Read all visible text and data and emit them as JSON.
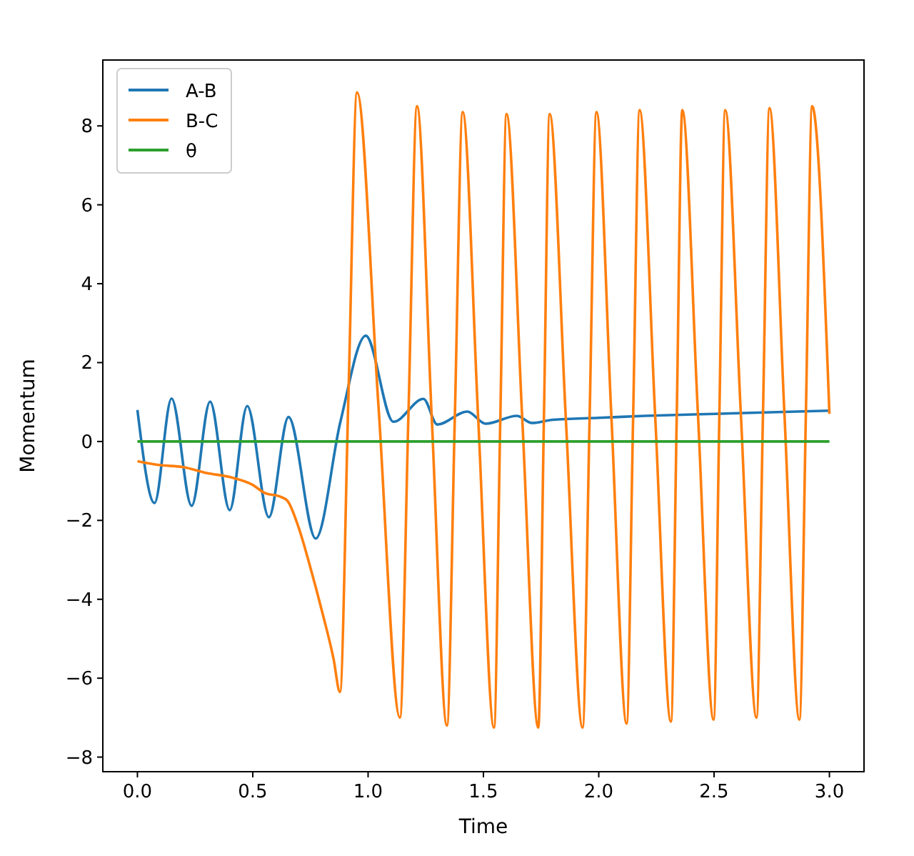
{
  "chart_data": {
    "type": "line",
    "xlabel": "Time",
    "ylabel": "Momentum",
    "xlim": [
      -0.15,
      3.15
    ],
    "ylim": [
      -8.37,
      9.67
    ],
    "xticks": [
      {
        "value": 0,
        "label": "0.0"
      },
      {
        "value": 0.5,
        "label": "0.5"
      },
      {
        "value": 1,
        "label": "1.0"
      },
      {
        "value": 1.5,
        "label": "1.5"
      },
      {
        "value": 2,
        "label": "2.0"
      },
      {
        "value": 2.5,
        "label": "2.5"
      },
      {
        "value": 3,
        "label": "3.0"
      }
    ],
    "yticks": [
      {
        "value": -8,
        "label": "−8"
      },
      {
        "value": -6,
        "label": "−6"
      },
      {
        "value": -4,
        "label": "−4"
      },
      {
        "value": -2,
        "label": "−2"
      },
      0,
      2,
      4,
      6,
      8
    ],
    "legend": "top left",
    "grid": false,
    "marker": "none",
    "line_style": "solid",
    "series": [
      {
        "name": "A-B",
        "color": "#1f77b4",
        "x": [
          0,
          0.074,
          0.148,
          0.235,
          0.315,
          0.4,
          0.476,
          0.57,
          0.655,
          0.773,
          0.88,
          0.99,
          1.11,
          1.24,
          1.3,
          1.43,
          1.51,
          1.645,
          1.71,
          1.8,
          2.0,
          2.2,
          2.5,
          2.8,
          3.0
        ],
        "values": [
          0.8,
          -1.56,
          1.09,
          -1.63,
          1.01,
          -1.74,
          0.9,
          -1.92,
          0.62,
          -2.46,
          0.5,
          2.68,
          0.5,
          1.08,
          0.43,
          0.76,
          0.45,
          0.65,
          0.47,
          0.55,
          0.6,
          0.65,
          0.7,
          0.75,
          0.78
        ]
      },
      {
        "name": "B-C",
        "color": "#ff7f0e",
        "x": [
          0,
          0.1,
          0.2,
          0.3,
          0.4,
          0.5,
          0.55,
          0.62,
          0.65,
          0.7,
          0.75,
          0.8,
          0.85,
          0.878,
          0.915,
          0.952,
          1.045,
          1.138,
          1.175,
          1.212,
          1.276,
          1.342,
          1.376,
          1.41,
          1.478,
          1.546,
          1.573,
          1.6,
          1.669,
          1.738,
          1.762,
          1.787,
          1.858,
          1.93,
          1.96,
          1.99,
          2.055,
          2.121,
          2.149,
          2.177,
          2.245,
          2.313,
          2.338,
          2.362,
          2.43,
          2.498,
          2.523,
          2.548,
          2.616,
          2.684,
          2.712,
          2.74,
          2.805,
          2.87,
          2.898,
          2.925,
          3.0
        ],
        "values": [
          -0.5,
          -0.6,
          -0.65,
          -0.8,
          -0.9,
          -1.1,
          -1.3,
          -1.4,
          -1.5,
          -2.2,
          -3.2,
          -4.3,
          -5.5,
          -6.35,
          1.2,
          8.85,
          0.9,
          -7.0,
          0.7,
          8.5,
          0.6,
          -7.2,
          0.6,
          8.35,
          0.5,
          -7.25,
          0.5,
          8.3,
          0.5,
          -7.25,
          0.5,
          8.3,
          0.5,
          -7.25,
          0.5,
          8.35,
          0.6,
          -7.15,
          0.6,
          8.4,
          0.6,
          -7.1,
          0.6,
          8.4,
          0.7,
          -7.05,
          0.7,
          8.4,
          0.7,
          -7.0,
          0.7,
          8.45,
          0.7,
          -7.05,
          0.7,
          8.5,
          0.7
        ]
      },
      {
        "name": "θ",
        "color": "#2ca02c",
        "x": [
          0,
          3.0
        ],
        "values": [
          0,
          0
        ]
      }
    ]
  }
}
